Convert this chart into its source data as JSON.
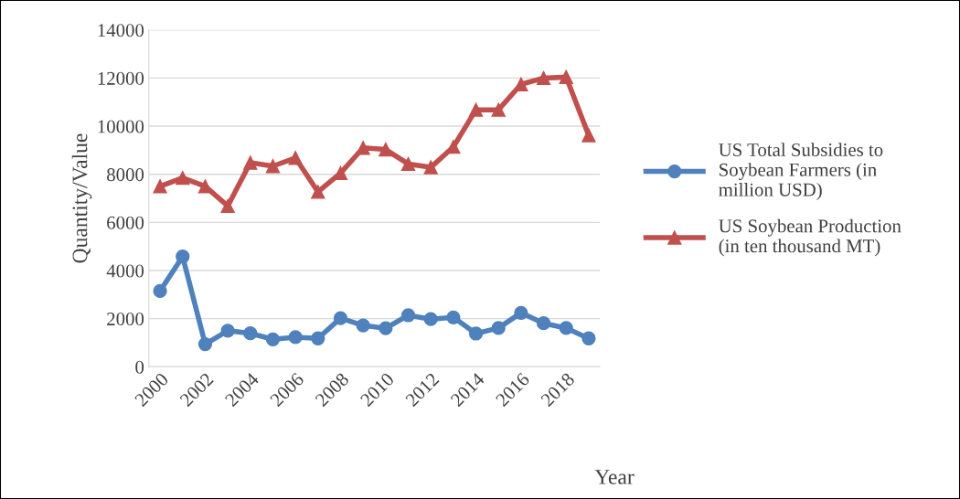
{
  "chart_data": {
    "type": "line",
    "xlabel": "Year",
    "ylabel": "Quantity/Value",
    "x": [
      2000,
      2001,
      2002,
      2003,
      2004,
      2005,
      2006,
      2007,
      2008,
      2009,
      2010,
      2011,
      2012,
      2013,
      2014,
      2015,
      2016,
      2017,
      2018,
      2019
    ],
    "series": [
      {
        "name": "US Total Subsidies to Soybean Farmers (in million USD)",
        "color": "#4f81bd",
        "marker": "circle",
        "values": [
          3150,
          4580,
          940,
          1500,
          1390,
          1140,
          1230,
          1180,
          2020,
          1720,
          1600,
          2140,
          1980,
          2050,
          1380,
          1610,
          2240,
          1810,
          1610,
          1180
        ]
      },
      {
        "name": "US Soybean Production (in ten thousand MT)",
        "color": "#c0504d",
        "marker": "triangle",
        "values": [
          7500,
          7850,
          7500,
          6680,
          8480,
          8340,
          8680,
          7270,
          8050,
          9100,
          9030,
          8430,
          8290,
          9140,
          10680,
          10680,
          11740,
          12000,
          12040,
          9620
        ]
      }
    ],
    "xlim": [
      1999.5,
      2019.5
    ],
    "xticks": [
      2000,
      2002,
      2004,
      2006,
      2008,
      2010,
      2012,
      2014,
      2016,
      2018
    ],
    "ylim": [
      0,
      14000
    ],
    "yticks": [
      0,
      2000,
      4000,
      6000,
      8000,
      10000,
      12000,
      14000
    ],
    "grid": "y",
    "legend": "right",
    "line_style": "solid"
  }
}
